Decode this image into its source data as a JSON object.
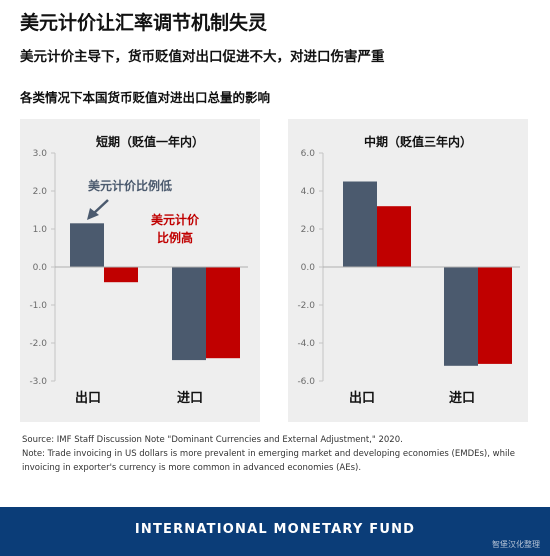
{
  "header": {
    "title": "美元计价让汇率调节机制失灵",
    "subtitle": "美元计价主导下，货币贬值对出口促进不大，对进口伤害严重",
    "figure_title": "各类情况下本国货币贬值对进出口总量的影响"
  },
  "colors": {
    "usd_invoicing": "#4b5a6e",
    "producer_invoicing": "#c00000",
    "panel_bg": "#eeeeee",
    "footer_bg": "#0b3d78"
  },
  "chart_data": [
    {
      "type": "bar",
      "title": "短期（贬值一年内）",
      "categories": [
        "出口",
        "进口"
      ],
      "series": [
        {
          "name": "美元计价比例低",
          "values": [
            1.15,
            -2.45
          ]
        },
        {
          "name": "美元计价比例高",
          "values": [
            -0.4,
            -2.4
          ]
        }
      ],
      "ylim": [
        -3.0,
        3.0
      ],
      "yticks": [
        "3.0",
        "2.0",
        "1.0",
        "0.0",
        "-1.0",
        "-2.0",
        "-3.0"
      ],
      "annotations": {
        "low": "美元计价比例低",
        "high_line1": "美元计价",
        "high_line2": "比例高"
      },
      "grid": false
    },
    {
      "type": "bar",
      "title": "中期（贬值三年内）",
      "categories": [
        "出口",
        "进口"
      ],
      "series": [
        {
          "name": "美元计价比例低",
          "values": [
            4.5,
            -5.2
          ]
        },
        {
          "name": "美元计价比例高",
          "values": [
            3.2,
            -5.1
          ]
        }
      ],
      "ylim": [
        -6.0,
        6.0
      ],
      "yticks": [
        "6.0",
        "4.0",
        "2.0",
        "0.0",
        "-2.0",
        "-4.0",
        "-6.0"
      ],
      "grid": false
    }
  ],
  "notes": {
    "source": "Source: IMF Staff Discussion Note \"Dominant Currencies and External Adjustment,\" 2020.",
    "note_line1": "Note: Trade invoicing in US dollars is more prevalent in emerging market and developing economies (EMDEs), while",
    "note_line2": "invoicing in exporter's currency is more common in advanced economies (AEs)."
  },
  "footer": {
    "org": "INTERNATIONAL MONETARY FUND",
    "watermark": "智堡汉化整理"
  }
}
